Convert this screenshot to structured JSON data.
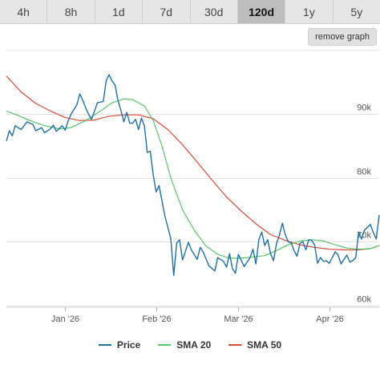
{
  "tabs": [
    {
      "label": "4h",
      "active": false
    },
    {
      "label": "8h",
      "active": false
    },
    {
      "label": "1d",
      "active": false
    },
    {
      "label": "7d",
      "active": false
    },
    {
      "label": "30d",
      "active": false
    },
    {
      "label": "120d",
      "active": true
    },
    {
      "label": "1y",
      "active": false
    },
    {
      "label": "5y",
      "active": false
    }
  ],
  "remove_graph_label": "remove graph",
  "colors": {
    "price": "#1f6fa8",
    "sma20": "#58c868",
    "sma50": "#dd4a36",
    "grid": "#e3e3e3"
  },
  "chart_data": {
    "type": "line",
    "x_axis": {
      "ticks": [
        {
          "label": "Jan '26",
          "day": 20
        },
        {
          "label": "Feb '26",
          "day": 51
        },
        {
          "label": "Mar '26",
          "day": 79
        },
        {
          "label": "Apr '26",
          "day": 110
        }
      ],
      "range_days": [
        0,
        127
      ],
      "start_month": "Dec '25"
    },
    "y_axis": {
      "ticks": [
        {
          "label": "90k",
          "value": 90000
        },
        {
          "label": "80k",
          "value": 80000
        },
        {
          "label": "70k",
          "value": 70000
        },
        {
          "label": "60k",
          "value": 60000
        }
      ],
      "ylim": [
        59700,
        100000
      ]
    },
    "grid": true,
    "legend_position": "bottom",
    "series": [
      {
        "name": "Price",
        "color_key": "price",
        "points": [
          [
            0,
            85800
          ],
          [
            1,
            87400
          ],
          [
            2,
            86600
          ],
          [
            3,
            88200
          ],
          [
            5,
            87600
          ],
          [
            7,
            88800
          ],
          [
            9,
            88400
          ],
          [
            10,
            87400
          ],
          [
            12,
            87900
          ],
          [
            13,
            87100
          ],
          [
            15,
            87700
          ],
          [
            16,
            88300
          ],
          [
            17,
            87300
          ],
          [
            19,
            88200
          ],
          [
            20,
            87500
          ],
          [
            21,
            88900
          ],
          [
            22,
            90000
          ],
          [
            24,
            91500
          ],
          [
            25,
            93200
          ],
          [
            26,
            92200
          ],
          [
            27,
            91000
          ],
          [
            28,
            90000
          ],
          [
            29,
            89200
          ],
          [
            31,
            91800
          ],
          [
            33,
            92000
          ],
          [
            34,
            95300
          ],
          [
            35,
            96200
          ],
          [
            36,
            95200
          ],
          [
            37,
            94600
          ],
          [
            38,
            92200
          ],
          [
            39,
            90600
          ],
          [
            40,
            88800
          ],
          [
            41,
            90300
          ],
          [
            42,
            88600
          ],
          [
            43,
            88600
          ],
          [
            44,
            89200
          ],
          [
            45,
            87600
          ],
          [
            46,
            89400
          ],
          [
            47,
            88200
          ],
          [
            48,
            84000
          ],
          [
            49,
            84200
          ],
          [
            50,
            80500
          ],
          [
            51,
            77800
          ],
          [
            52,
            78800
          ],
          [
            54,
            74000
          ],
          [
            56,
            70500
          ],
          [
            57,
            64700
          ],
          [
            58,
            69800
          ],
          [
            59,
            70300
          ],
          [
            60,
            67100
          ],
          [
            62,
            69900
          ],
          [
            63,
            68700
          ],
          [
            65,
            67200
          ],
          [
            66,
            69100
          ],
          [
            67,
            68400
          ],
          [
            69,
            66200
          ],
          [
            71,
            65400
          ],
          [
            72,
            67500
          ],
          [
            74,
            66900
          ],
          [
            75,
            66000
          ],
          [
            76,
            68100
          ],
          [
            77,
            65800
          ],
          [
            78,
            65000
          ],
          [
            79,
            68000
          ],
          [
            81,
            66100
          ],
          [
            83,
            67500
          ],
          [
            84,
            68800
          ],
          [
            85,
            66500
          ],
          [
            86,
            70300
          ],
          [
            87,
            71500
          ],
          [
            88,
            69400
          ],
          [
            89,
            70300
          ],
          [
            90,
            68100
          ],
          [
            91,
            67000
          ],
          [
            92,
            69700
          ],
          [
            93,
            71000
          ],
          [
            94,
            72900
          ],
          [
            95,
            71100
          ],
          [
            96,
            70000
          ],
          [
            97,
            69800
          ],
          [
            98,
            68600
          ],
          [
            99,
            67700
          ],
          [
            100,
            69700
          ],
          [
            101,
            70000
          ],
          [
            102,
            68700
          ],
          [
            103,
            70300
          ],
          [
            104,
            70200
          ],
          [
            105,
            69500
          ],
          [
            106,
            66600
          ],
          [
            107,
            67500
          ],
          [
            108,
            66900
          ],
          [
            109,
            67000
          ],
          [
            110,
            66600
          ],
          [
            112,
            68400
          ],
          [
            113,
            67900
          ],
          [
            114,
            66500
          ],
          [
            115,
            67200
          ],
          [
            116,
            67900
          ],
          [
            117,
            66800
          ],
          [
            118,
            67000
          ],
          [
            119,
            67500
          ],
          [
            120,
            71500
          ],
          [
            121,
            70400
          ],
          [
            122,
            71800
          ],
          [
            124,
            72700
          ],
          [
            125,
            71400
          ],
          [
            126,
            70400
          ],
          [
            127,
            74200
          ]
        ]
      },
      {
        "name": "SMA 20",
        "color_key": "sma20",
        "points": [
          [
            0,
            90500
          ],
          [
            3,
            90000
          ],
          [
            8,
            89000
          ],
          [
            13,
            88200
          ],
          [
            18,
            87700
          ],
          [
            22,
            87900
          ],
          [
            27,
            89000
          ],
          [
            32,
            90500
          ],
          [
            36,
            91800
          ],
          [
            40,
            92400
          ],
          [
            43,
            92300
          ],
          [
            47,
            91300
          ],
          [
            50,
            89000
          ],
          [
            53,
            85000
          ],
          [
            56,
            80000
          ],
          [
            60,
            75000
          ],
          [
            64,
            71800
          ],
          [
            68,
            69300
          ],
          [
            72,
            68000
          ],
          [
            76,
            67400
          ],
          [
            80,
            67400
          ],
          [
            84,
            67600
          ],
          [
            88,
            67800
          ],
          [
            92,
            68600
          ],
          [
            96,
            69500
          ],
          [
            100,
            70100
          ],
          [
            104,
            70300
          ],
          [
            108,
            70100
          ],
          [
            112,
            69500
          ],
          [
            116,
            69000
          ],
          [
            120,
            68800
          ],
          [
            124,
            68900
          ],
          [
            127,
            69400
          ]
        ]
      },
      {
        "name": "SMA 50",
        "color_key": "sma50",
        "points": [
          [
            0,
            96000
          ],
          [
            5,
            93500
          ],
          [
            10,
            91700
          ],
          [
            15,
            90500
          ],
          [
            20,
            89500
          ],
          [
            25,
            89000
          ],
          [
            30,
            89100
          ],
          [
            35,
            89700
          ],
          [
            40,
            89900
          ],
          [
            45,
            89900
          ],
          [
            50,
            89300
          ],
          [
            55,
            87600
          ],
          [
            60,
            85200
          ],
          [
            65,
            82500
          ],
          [
            70,
            79700
          ],
          [
            75,
            77000
          ],
          [
            80,
            74800
          ],
          [
            85,
            72800
          ],
          [
            90,
            71100
          ],
          [
            95,
            70200
          ],
          [
            100,
            69500
          ],
          [
            105,
            69100
          ],
          [
            110,
            68800
          ],
          [
            115,
            68700
          ],
          [
            120,
            68700
          ],
          [
            124,
            68900
          ],
          [
            127,
            69400
          ]
        ]
      }
    ]
  }
}
